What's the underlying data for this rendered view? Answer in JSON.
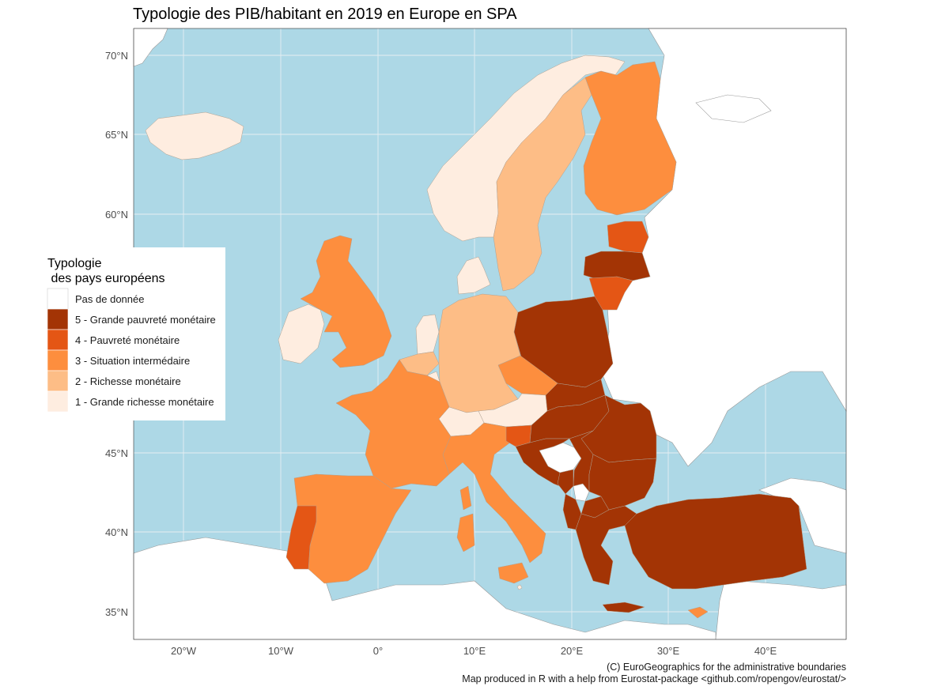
{
  "title": "Typologie des PIB/habitant en 2019 en Europe en SPA",
  "colors": {
    "sea": "#add8e6",
    "no_data": "#ffffff",
    "class_1": "#feede0",
    "class_2": "#fdbd86",
    "class_3": "#fd8e3e",
    "class_4": "#e45615",
    "class_5": "#a33405"
  },
  "axes": {
    "x_ticks": [
      "20°W",
      "10°W",
      "0°",
      "10°E",
      "20°E",
      "30°E",
      "40°E"
    ],
    "y_ticks": [
      "70°N",
      "65°N",
      "60°N",
      "45°N",
      "40°N",
      "35°N"
    ]
  },
  "legend": {
    "title_line1": "Typologie",
    "title_line2": " des pays européens",
    "items": [
      {
        "label": "Pas de donnée",
        "color_key": "no_data"
      },
      {
        "label": "5 - Grande pauvreté monétaire",
        "color_key": "class_5"
      },
      {
        "label": "4 - Pauvreté monétaire",
        "color_key": "class_4"
      },
      {
        "label": "3 - Situation intermédaire",
        "color_key": "class_3"
      },
      {
        "label": "2 - Richesse monétaire",
        "color_key": "class_2"
      },
      {
        "label": "1 - Grande richesse monétaire",
        "color_key": "class_1"
      }
    ]
  },
  "caption": {
    "line1": "(C) EuroGeographics for the administrative boundaries",
    "line2": "Map produced in R with a help from Eurostat-package <github.com/ropengov/eurostat/>"
  },
  "countries": [
    {
      "name": "Iceland",
      "class": "class_1"
    },
    {
      "name": "Norway",
      "class": "class_1"
    },
    {
      "name": "Sweden",
      "class": "class_2"
    },
    {
      "name": "Finland",
      "class": "class_3"
    },
    {
      "name": "Estonia",
      "class": "class_4"
    },
    {
      "name": "Latvia",
      "class": "class_5"
    },
    {
      "name": "Lithuania",
      "class": "class_4"
    },
    {
      "name": "Ireland",
      "class": "class_1"
    },
    {
      "name": "United Kingdom",
      "class": "class_3"
    },
    {
      "name": "Denmark",
      "class": "class_1"
    },
    {
      "name": "Netherlands",
      "class": "class_1"
    },
    {
      "name": "Belgium",
      "class": "class_2"
    },
    {
      "name": "Luxembourg",
      "class": "class_1"
    },
    {
      "name": "Germany",
      "class": "class_2"
    },
    {
      "name": "Poland",
      "class": "class_5"
    },
    {
      "name": "Czechia",
      "class": "class_3"
    },
    {
      "name": "Austria",
      "class": "class_1"
    },
    {
      "name": "Switzerland",
      "class": "class_1"
    },
    {
      "name": "France",
      "class": "class_3"
    },
    {
      "name": "Spain",
      "class": "class_3"
    },
    {
      "name": "Portugal",
      "class": "class_4"
    },
    {
      "name": "Italy",
      "class": "class_3"
    },
    {
      "name": "Slovenia",
      "class": "class_4"
    },
    {
      "name": "Slovakia",
      "class": "class_5"
    },
    {
      "name": "Hungary",
      "class": "class_5"
    },
    {
      "name": "Croatia",
      "class": "class_5"
    },
    {
      "name": "Romania",
      "class": "class_5"
    },
    {
      "name": "Serbia",
      "class": "class_5"
    },
    {
      "name": "Montenegro",
      "class": "class_5"
    },
    {
      "name": "North Macedonia",
      "class": "class_5"
    },
    {
      "name": "Albania",
      "class": "class_5"
    },
    {
      "name": "Bulgaria",
      "class": "class_5"
    },
    {
      "name": "Greece",
      "class": "class_5"
    },
    {
      "name": "Turkey",
      "class": "class_5"
    },
    {
      "name": "Cyprus",
      "class": "class_3"
    },
    {
      "name": "Malta",
      "class": "class_1"
    }
  ]
}
